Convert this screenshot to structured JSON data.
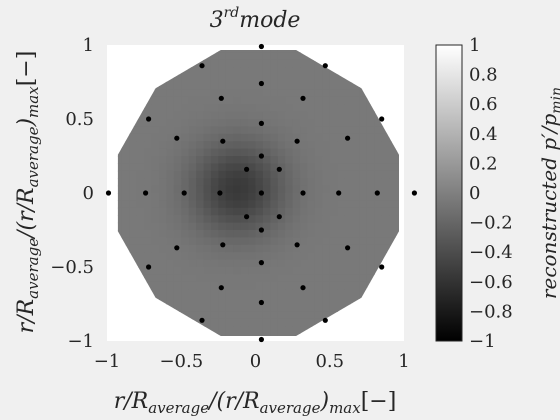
{
  "chart_data": {
    "type": "heatmap",
    "title": {
      "base": "3",
      "sup": "rd",
      "rest": "mode"
    },
    "xlabel": {
      "pre": "r/R",
      "sub1": "average",
      "mid": "/(r/R",
      "sub2": "average",
      "post": ")",
      "sub3": "max",
      "unit": "[−]"
    },
    "ylabel": {
      "pre": "r/R",
      "sub1": "average",
      "mid": "/(r/R",
      "sub2": "average",
      "post": ")",
      "sub3": "max",
      "unit": "[−]"
    },
    "colorbar_label": {
      "pre": "reconstructed p′/p",
      "sub": "min"
    },
    "xlim": [
      -1,
      1
    ],
    "ylim": [
      -1,
      1
    ],
    "clim": [
      -1,
      1
    ],
    "xticks": [
      -1,
      -0.5,
      0,
      0.5,
      1
    ],
    "yticks": [
      -1,
      -0.5,
      0,
      0.5,
      1
    ],
    "colorbar_ticks": [
      1,
      0.8,
      0.6,
      0.4,
      0.2,
      0,
      -0.2,
      -0.4,
      -0.6,
      -0.8,
      -1
    ],
    "colormap": "gray",
    "field_base_value": -0.05,
    "dark_spot": {
      "x": -0.12,
      "y": 0.03,
      "value": -0.55,
      "sigma": 0.22
    },
    "sensor_points": [
      [
        0.04,
        0.99
      ],
      [
        -0.36,
        0.86
      ],
      [
        0.47,
        0.86
      ],
      [
        -0.72,
        0.5
      ],
      [
        0.85,
        0.5
      ],
      [
        0.04,
        0.74
      ],
      [
        -0.23,
        0.64
      ],
      [
        0.32,
        0.64
      ],
      [
        -0.53,
        0.37
      ],
      [
        0.62,
        0.37
      ],
      [
        -0.22,
        0.35
      ],
      [
        0.28,
        0.35
      ],
      [
        0.04,
        0.47
      ],
      [
        -0.06,
        0.16
      ],
      [
        0.16,
        0.16
      ],
      [
        0.04,
        0.25
      ],
      [
        -0.99,
        0.0
      ],
      [
        1.07,
        0.0
      ],
      [
        -0.74,
        0.0
      ],
      [
        0.82,
        0.0
      ],
      [
        -0.48,
        0.0
      ],
      [
        0.56,
        0.0
      ],
      [
        -0.24,
        0.0
      ],
      [
        0.32,
        0.0
      ],
      [
        0.04,
        0.0
      ],
      [
        -0.06,
        -0.16
      ],
      [
        0.16,
        -0.16
      ],
      [
        0.04,
        -0.25
      ],
      [
        -0.22,
        -0.35
      ],
      [
        0.28,
        -0.35
      ],
      [
        0.04,
        -0.47
      ],
      [
        -0.53,
        -0.37
      ],
      [
        0.62,
        -0.37
      ],
      [
        -0.23,
        -0.64
      ],
      [
        0.32,
        -0.64
      ],
      [
        0.04,
        -0.74
      ],
      [
        -0.72,
        -0.5
      ],
      [
        0.85,
        -0.5
      ],
      [
        -0.36,
        -0.86
      ],
      [
        0.47,
        -0.86
      ],
      [
        0.04,
        -0.99
      ]
    ],
    "grid": false,
    "colorbar_position": "right"
  }
}
